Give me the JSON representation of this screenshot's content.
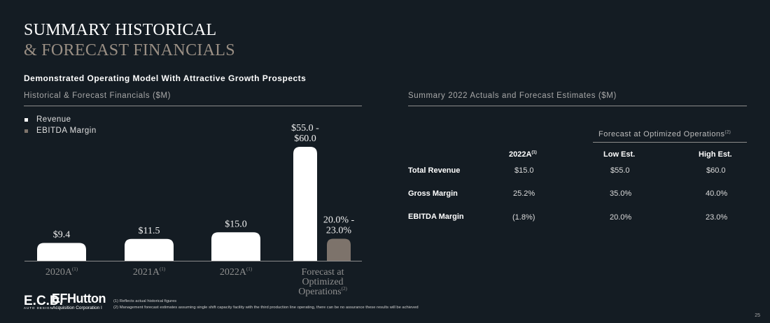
{
  "header": {
    "title_line1": "SUMMARY HISTORICAL",
    "title_line2": "& FORECAST FINANCIALS",
    "subtitle": "Demonstrated Operating Model With Attractive Growth Prospects"
  },
  "left_section_title": "Historical & Forecast Financials ($M)",
  "right_section_title": "Summary 2022 Actuals and Forecast Estimates ($M)",
  "colors": {
    "background": "#141c23",
    "revenue": "#ffffff",
    "ebitda": "#7d736b",
    "accent": "#9a8f84"
  },
  "chart_data": {
    "type": "bar",
    "title": "Historical & Forecast Financials ($M)",
    "legend": [
      "Revenue",
      "EBITDA Margin"
    ],
    "legend_position": "top-left",
    "categories": [
      {
        "label": "2020A",
        "sup": "(1)"
      },
      {
        "label": "2021A",
        "sup": "(1)"
      },
      {
        "label": "2022A",
        "sup": "(1)"
      },
      {
        "label": "Forecast at Optimized Operations",
        "lines": [
          "Forecast at",
          "Optimized",
          "Operations"
        ],
        "sup": "(2)"
      }
    ],
    "series": [
      {
        "name": "Revenue",
        "values": [
          9.4,
          11.5,
          15.0,
          60.0
        ],
        "labels": [
          [
            "$9.4"
          ],
          [
            "$11.5"
          ],
          [
            "$15.0"
          ],
          [
            "$55.0 -",
            "$60.0"
          ]
        ]
      },
      {
        "name": "EBITDA Margin",
        "unit": "%",
        "values": [
          null,
          null,
          null,
          23.0
        ],
        "labels": [
          null,
          null,
          null,
          [
            "20.0% -",
            "23.0%"
          ]
        ]
      }
    ],
    "grid": false,
    "xlabel": "",
    "ylabel": ""
  },
  "table": {
    "group_header": "Forecast at Optimized Operations",
    "group_header_sup": "(2)",
    "columns": [
      {
        "label": "2022A",
        "sup": "(1)"
      },
      {
        "label": "Low Est.",
        "sup": ""
      },
      {
        "label": "High Est.",
        "sup": ""
      }
    ],
    "rows": [
      {
        "label": "Total Revenue",
        "values": [
          "$15.0",
          "$55.0",
          "$60.0"
        ]
      },
      {
        "label": "Gross Margin",
        "values": [
          "25.2%",
          "35.0%",
          "40.0%"
        ]
      },
      {
        "label": "EBITDA Margin",
        "values": [
          "(1.8%)",
          "20.0%",
          "23.0%"
        ]
      }
    ]
  },
  "footer": {
    "logo1_text": "E.C.D.",
    "logo1_sub": "AUTO DESIGN",
    "logo2_text": "EFHutton",
    "logo2_sub": "Acquisition Corporation I",
    "footnote1": "(1) Reflects actual historical figures",
    "footnote2": "(2) Management forecast estimates assuming single shift capacity facility with the third production line operating, there can be no assurance these results will be achieved",
    "page_number": "25"
  }
}
